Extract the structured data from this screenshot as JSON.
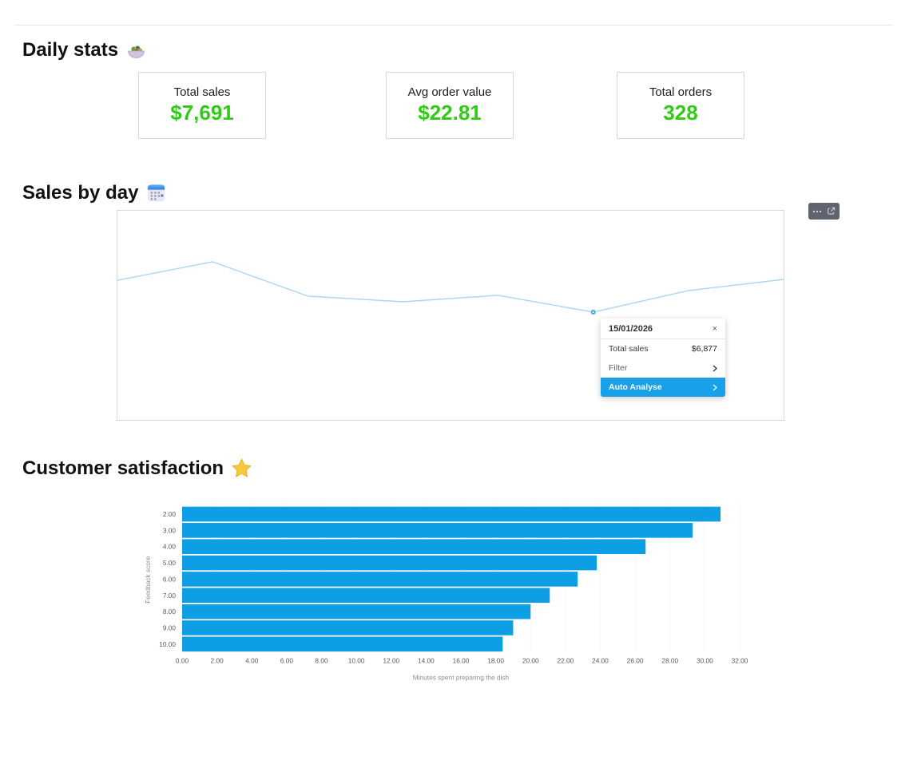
{
  "sections": {
    "daily_stats": {
      "title": "Daily stats",
      "icon": "salad-bowl-emoji"
    },
    "sales_by_day": {
      "title": "Sales by day",
      "icon": "calendar-emoji"
    },
    "customer_satisfaction": {
      "title": "Customer satisfaction",
      "icon": "star-emoji"
    }
  },
  "stat_cards": [
    {
      "label": "Total sales",
      "value": "$7,691"
    },
    {
      "label": "Avg order value",
      "value": "$22.81"
    },
    {
      "label": "Total orders",
      "value": "328"
    }
  ],
  "sales_chart": {
    "toolbar": {
      "more_icon": "ellipsis-icon",
      "expand_icon": "open-in-new-window-icon"
    },
    "tooltip": {
      "date": "15/01/2026",
      "close_icon": "×",
      "metric_label": "Total sales",
      "metric_value": "$6,877",
      "filter_label": "Filter",
      "auto_analyse_label": "Auto Analyse"
    }
  },
  "colors": {
    "stat_value_green": "#2fcb15",
    "line_blue": "#a9d7ef",
    "marker_blue": "#2fa0d4",
    "bar_blue": "#0d9ee4",
    "accent_blue": "#18a0e8",
    "toolbar_gray": "#5d6470"
  },
  "chart_data": [
    {
      "type": "line",
      "title": "Sales by day",
      "x": [
        1,
        2,
        3,
        4,
        5,
        6,
        7,
        8
      ],
      "series": [
        {
          "name": "Total sales",
          "values": [
            7670,
            8130,
            7275,
            7135,
            7295,
            6877,
            7413,
            7691
          ]
        }
      ],
      "highlighted_point": {
        "index": 5,
        "label": "15/01/2026",
        "value": 6877,
        "display": "$6,877"
      },
      "xlabel": "",
      "ylabel": "",
      "axes_visible": false,
      "grid": false,
      "legend": false
    },
    {
      "type": "bar",
      "orientation": "horizontal",
      "title": "Customer satisfaction",
      "categories": [
        "2.00",
        "3.00",
        "4.00",
        "5.00",
        "6.00",
        "7.00",
        "8.00",
        "9.00",
        "10.00"
      ],
      "values": [
        30.9,
        29.3,
        26.6,
        23.8,
        22.7,
        21.1,
        20.0,
        19.0,
        18.4
      ],
      "xlabel": "Minutes spent preparing the dish",
      "ylabel": "Feedback score",
      "xlim": [
        0,
        32
      ],
      "xticks": [
        "0.00",
        "2.00",
        "4.00",
        "6.00",
        "8.00",
        "10.00",
        "12.00",
        "14.00",
        "16.00",
        "18.00",
        "20.00",
        "22.00",
        "24.00",
        "26.00",
        "28.00",
        "30.00",
        "32.00"
      ],
      "grid": true,
      "legend": false
    }
  ]
}
